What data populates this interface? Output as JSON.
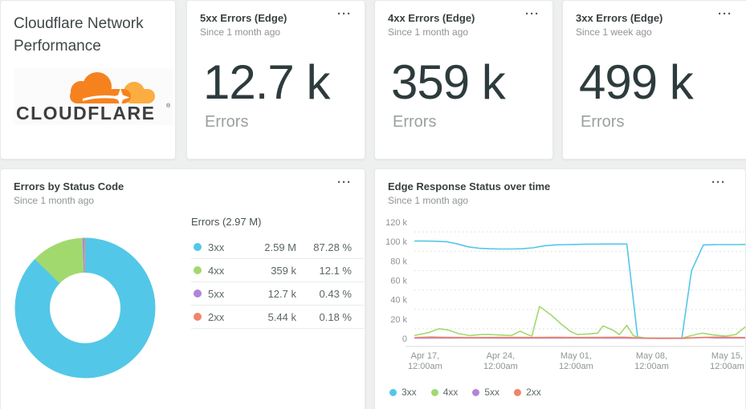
{
  "icons": {
    "overflow_menu": "···"
  },
  "colors": {
    "c3xx": "#53c7e8",
    "c4xx": "#a2d96f",
    "c5xx": "#b086d8",
    "c2xx": "#f0846a",
    "brand_orange": "#f6821f",
    "brand_orange_light": "#fbad41"
  },
  "header_card": {
    "title": "Cloudflare Network Performance",
    "logo_wordmark": "CLOUDFLARE",
    "logo_reg_mark": "®"
  },
  "stat_cards": [
    {
      "title": "5xx Errors (Edge)",
      "subtitle": "Since 1 month ago",
      "value": "12.7 k",
      "unit": "Errors"
    },
    {
      "title": "4xx Errors (Edge)",
      "subtitle": "Since 1 month ago",
      "value": "359 k",
      "unit": "Errors"
    },
    {
      "title": "3xx Errors (Edge)",
      "subtitle": "Since 1 week ago",
      "value": "499 k",
      "unit": "Errors"
    }
  ],
  "donut_card": {
    "title": "Errors by Status Code",
    "subtitle": "Since 1 month ago"
  },
  "timeseries_card": {
    "title": "Edge Response Status over time",
    "subtitle": "Since 1 month ago"
  },
  "chart_data": [
    {
      "type": "pie",
      "subtype": "donut",
      "title": "Errors by Status Code",
      "total_label": "Errors (2.97 M)",
      "legend_position": "right-table",
      "segments": [
        {
          "label": "3xx",
          "value": 2590000,
          "value_display": "2.59 M",
          "pct": 87.28,
          "pct_display": "87.28 %",
          "color": "#53c7e8"
        },
        {
          "label": "4xx",
          "value": 359000,
          "value_display": "359 k",
          "pct": 12.1,
          "pct_display": "12.1 %",
          "color": "#a2d96f"
        },
        {
          "label": "5xx",
          "value": 12700,
          "value_display": "12.7 k",
          "pct": 0.43,
          "pct_display": "0.43 %",
          "color": "#b086d8"
        },
        {
          "label": "2xx",
          "value": 5440,
          "value_display": "5.44 k",
          "pct": 0.18,
          "pct_display": "0.18 %",
          "color": "#f0846a"
        }
      ]
    },
    {
      "type": "line",
      "title": "Edge Response Status over time",
      "x_unit": "days since Apr 16, 12:00am",
      "y_unit": "errors, thousands",
      "ylim_k": [
        0,
        120
      ],
      "grid": "dashed minor gridlines every 10k",
      "legend_position": "bottom",
      "yticks": [
        {
          "k": 120,
          "label": "120 k"
        },
        {
          "k": 100,
          "label": "100 k"
        },
        {
          "k": 80,
          "label": "80 k"
        },
        {
          "k": 60,
          "label": "60 k"
        },
        {
          "k": 40,
          "label": "40 k"
        },
        {
          "k": 20,
          "label": "20 k"
        },
        {
          "k": 0,
          "label": "0"
        }
      ],
      "xticks": [
        {
          "day": 1,
          "line1": "Apr 17,",
          "line2": "12:00am"
        },
        {
          "day": 8,
          "line1": "Apr 24,",
          "line2": "12:00am"
        },
        {
          "day": 15,
          "line1": "May 01,",
          "line2": "12:00am"
        },
        {
          "day": 22,
          "line1": "May 08,",
          "line2": "12:00am"
        },
        {
          "day": 29,
          "line1": "May 15,",
          "line2": "12:00am"
        }
      ],
      "series": [
        {
          "name": "3xx",
          "color": "#53c7e8",
          "points_day_k": [
            [
              0,
              100.5
            ],
            [
              1,
              100.5
            ],
            [
              2,
              100.3
            ],
            [
              3,
              99.8
            ],
            [
              4,
              97.5
            ],
            [
              5,
              94.5
            ],
            [
              6,
              93
            ],
            [
              7,
              92.5
            ],
            [
              8,
              92.3
            ],
            [
              9,
              92.3
            ],
            [
              10,
              92.5
            ],
            [
              11,
              93.5
            ],
            [
              12,
              95.5
            ],
            [
              13,
              96.5
            ],
            [
              14,
              96.8
            ],
            [
              15,
              97
            ],
            [
              16,
              97.3
            ],
            [
              17,
              97.3
            ],
            [
              18,
              97.4
            ],
            [
              19,
              97.4
            ],
            [
              19.7,
              97.4
            ],
            [
              20.7,
              1.5
            ],
            [
              21.5,
              0.5
            ],
            [
              22.5,
              0.3
            ],
            [
              24.8,
              0.3
            ],
            [
              25.7,
              70
            ],
            [
              26.8,
              96.5
            ],
            [
              28,
              96.8
            ],
            [
              29,
              96.8
            ],
            [
              30,
              96.8
            ],
            [
              30.7,
              97
            ]
          ]
        },
        {
          "name": "4xx",
          "color": "#a2d96f",
          "points_day_k": [
            [
              0,
              3
            ],
            [
              1.3,
              6
            ],
            [
              2.3,
              10
            ],
            [
              3.2,
              8.5
            ],
            [
              4.1,
              5
            ],
            [
              5.1,
              3
            ],
            [
              6.2,
              4
            ],
            [
              7.1,
              4
            ],
            [
              8,
              3.5
            ],
            [
              9,
              3
            ],
            [
              9.8,
              7.5
            ],
            [
              10.5,
              4
            ],
            [
              10.9,
              2.5
            ],
            [
              11.6,
              33
            ],
            [
              12.7,
              24
            ],
            [
              13.6,
              15
            ],
            [
              14.5,
              7
            ],
            [
              15.1,
              4
            ],
            [
              16,
              4.5
            ],
            [
              17,
              5.5
            ],
            [
              17.5,
              13
            ],
            [
              18.5,
              8
            ],
            [
              19,
              4
            ],
            [
              19.7,
              13.5
            ],
            [
              20.3,
              3
            ],
            [
              20.8,
              1
            ],
            [
              21.8,
              0.3
            ],
            [
              23.3,
              0.2
            ],
            [
              24.8,
              0.3
            ],
            [
              25.7,
              3
            ],
            [
              26.7,
              5.5
            ],
            [
              27.8,
              3.5
            ],
            [
              28.9,
              2.5
            ],
            [
              29.8,
              4
            ],
            [
              30.7,
              12
            ]
          ]
        },
        {
          "name": "5xx",
          "color": "#b086d8",
          "points_day_k": [
            [
              0,
              0.3
            ],
            [
              5,
              0.4
            ],
            [
              10,
              0.3
            ],
            [
              15,
              0.4
            ],
            [
              19.7,
              0.3
            ],
            [
              22,
              0.1
            ],
            [
              24.8,
              0.1
            ],
            [
              27,
              1
            ],
            [
              28,
              0.5
            ],
            [
              30.7,
              0.4
            ]
          ]
        },
        {
          "name": "2xx",
          "color": "#f0846a",
          "points_day_k": [
            [
              0,
              0.8
            ],
            [
              1.5,
              1.5
            ],
            [
              2.5,
              1.2
            ],
            [
              5,
              0.9
            ],
            [
              7,
              1
            ],
            [
              9,
              1.1
            ],
            [
              11,
              1
            ],
            [
              13,
              1.2
            ],
            [
              15,
              1
            ],
            [
              17,
              1.1
            ],
            [
              19,
              1.3
            ],
            [
              19.7,
              1.2
            ],
            [
              21,
              0.3
            ],
            [
              23,
              0.2
            ],
            [
              24.8,
              0.3
            ],
            [
              26,
              0.8
            ],
            [
              27,
              1.2
            ],
            [
              28.5,
              1.4
            ],
            [
              30,
              1
            ],
            [
              30.7,
              1
            ]
          ]
        }
      ]
    }
  ]
}
